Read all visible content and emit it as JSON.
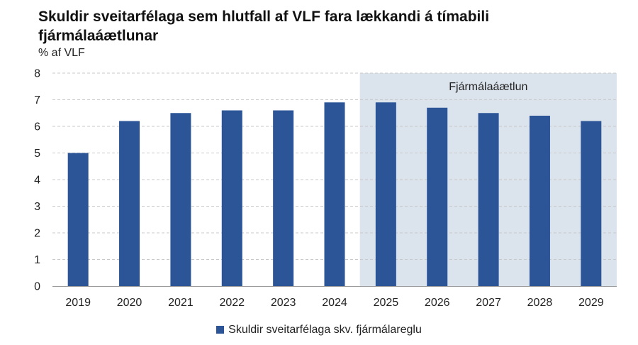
{
  "chart_data": {
    "type": "bar",
    "title": "Skuldir sveitarfélaga sem hlutfall af VLF fara lækkandi á tímabili fjármálaáætlunar",
    "ylabel": "% af VLF",
    "xlabel": "",
    "categories": [
      "2019",
      "2020",
      "2021",
      "2022",
      "2023",
      "2024",
      "2025",
      "2026",
      "2027",
      "2028",
      "2029"
    ],
    "series": [
      {
        "name": "Skuldir sveitarfélaga skv. fjármálareglu",
        "values": [
          5.0,
          6.2,
          6.5,
          6.6,
          6.6,
          6.9,
          6.9,
          6.7,
          6.5,
          6.4,
          6.2
        ]
      }
    ],
    "ylim": [
      0,
      8
    ],
    "yticks": [
      "0",
      "1",
      "2",
      "3",
      "4",
      "5",
      "6",
      "7",
      "8"
    ],
    "grid": true,
    "legend_position": "bottom",
    "shaded_region": {
      "from": "2025",
      "to": "2029",
      "label": "Fjármálaáætlun"
    }
  },
  "colors": {
    "bar": "#2b5597",
    "shade": "#dbe3ec",
    "grid": "#c9c9c9",
    "axis": "#9a9a9a"
  }
}
